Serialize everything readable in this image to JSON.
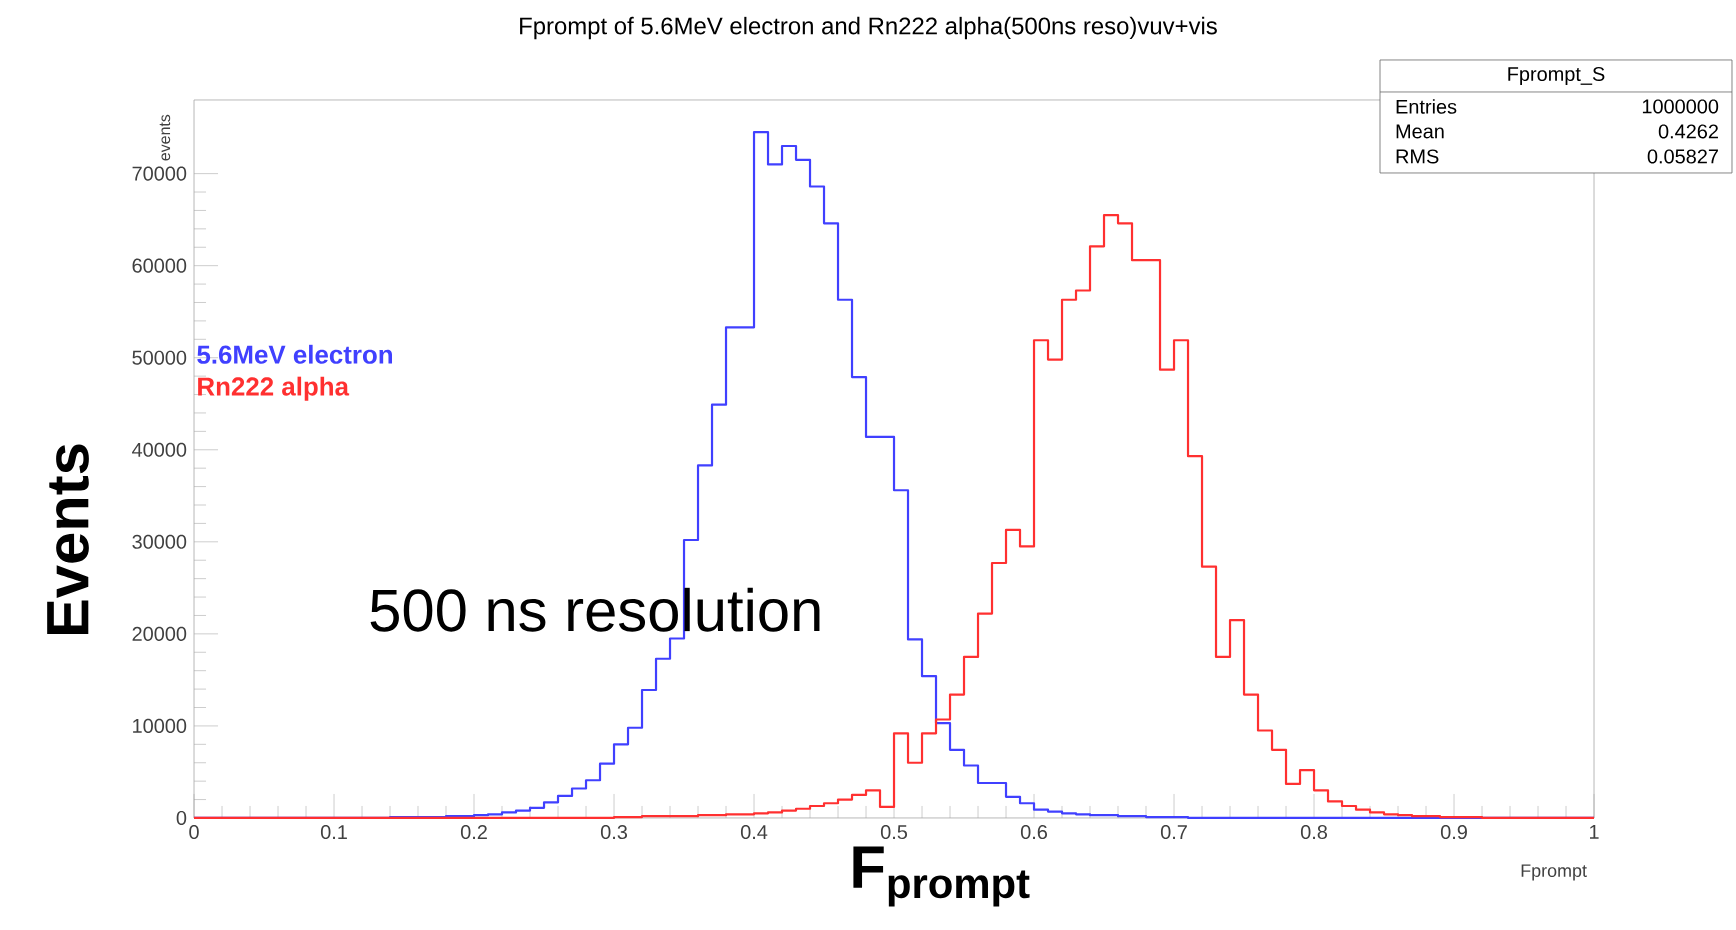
{
  "chart_data": {
    "type": "histogram",
    "title": "Fprompt of 5.6MeV electron and Rn222 alpha(500ns reso)vuv+vis",
    "xlabel": "F$_{prompt}$",
    "ylabel": "Events",
    "annotations": [
      "events",
      "Fprompt",
      "500 ns resolution",
      "Fprompt_S",
      "Entries",
      "1000000",
      "Mean",
      "0.4262",
      "RMS",
      "0.05827"
    ],
    "legend": "left",
    "xlim": [
      0,
      1
    ],
    "ylim": [
      0,
      78000
    ],
    "xticks": [
      0,
      0.1,
      0.2,
      0.3,
      0.4,
      0.5,
      0.6,
      0.7,
      0.8,
      0.9,
      1
    ],
    "yticks": [
      0,
      10000,
      20000,
      30000,
      40000,
      50000,
      60000,
      70000
    ],
    "bins": [
      0,
      0.01,
      0.02,
      0.03,
      0.04,
      0.05,
      0.06,
      0.07,
      0.08,
      0.09,
      0.1,
      0.11,
      0.12,
      0.13,
      0.14,
      0.15,
      0.16,
      0.17,
      0.18,
      0.19,
      0.2,
      0.21,
      0.22,
      0.23,
      0.24,
      0.25,
      0.26,
      0.27,
      0.28,
      0.29,
      0.3,
      0.31,
      0.32,
      0.33,
      0.34,
      0.35,
      0.36,
      0.37,
      0.38,
      0.39,
      0.4,
      0.41,
      0.42,
      0.43,
      0.44,
      0.45,
      0.46,
      0.47,
      0.48,
      0.49,
      0.5,
      0.51,
      0.52,
      0.53,
      0.54,
      0.55,
      0.56,
      0.57,
      0.58,
      0.59,
      0.6,
      0.61,
      0.62,
      0.63,
      0.64,
      0.65,
      0.66,
      0.67,
      0.68,
      0.69,
      0.7,
      0.71,
      0.72,
      0.73,
      0.74,
      0.75,
      0.76,
      0.77,
      0.78,
      0.79,
      0.8,
      0.81,
      0.82,
      0.83,
      0.84,
      0.85,
      0.86,
      0.87,
      0.88,
      0.89,
      0.9,
      0.91,
      0.92,
      0.93,
      0.94,
      0.95,
      0.96,
      0.97,
      0.98,
      0.99,
      1
    ],
    "series": [
      {
        "name": "5.6MeV electron",
        "color": "#4040ff",
        "values": [
          0,
          0,
          0,
          0,
          0,
          0,
          0,
          0,
          0,
          0,
          0,
          0,
          0,
          0,
          100,
          100,
          100,
          100,
          200,
          200,
          300,
          400,
          600,
          800,
          1100,
          1700,
          2400,
          3200,
          4100,
          5900,
          8000,
          9800,
          13900,
          17300,
          19500,
          30200,
          38300,
          44900,
          53300,
          53300,
          74500,
          71000,
          73000,
          71500,
          68600,
          64600,
          56300,
          47900,
          41400,
          41400,
          35600,
          19400,
          15400,
          10300,
          7400,
          5700,
          3800,
          3800,
          2300,
          1600,
          900,
          700,
          500,
          400,
          300,
          300,
          200,
          200,
          100,
          100,
          100,
          0,
          0,
          0,
          0,
          0,
          0,
          0,
          0,
          0,
          0,
          0,
          0,
          0,
          0,
          0,
          0,
          0,
          0,
          0,
          0,
          0,
          0,
          0,
          0,
          0,
          0,
          0,
          0,
          0
        ]
      },
      {
        "name": "Rn222 alpha",
        "color": "#ff3030",
        "values": [
          0,
          0,
          0,
          0,
          0,
          0,
          0,
          0,
          0,
          0,
          0,
          0,
          0,
          0,
          0,
          0,
          0,
          0,
          0,
          0,
          0,
          0,
          0,
          0,
          0,
          0,
          0,
          0,
          0,
          0,
          100,
          100,
          200,
          200,
          200,
          200,
          300,
          300,
          400,
          400,
          500,
          600,
          800,
          1000,
          1300,
          1600,
          2000,
          2500,
          3000,
          1200,
          9200,
          6000,
          9200,
          10700,
          13400,
          17500,
          22200,
          27700,
          31300,
          29500,
          51900,
          49800,
          56300,
          57300,
          62100,
          65500,
          64600,
          60600,
          60600,
          48700,
          51900,
          39300,
          27300,
          17500,
          21500,
          13400,
          9500,
          7400,
          3700,
          5200,
          3000,
          1800,
          1300,
          900,
          600,
          400,
          300,
          200,
          200,
          100,
          100,
          100,
          0,
          0,
          0,
          0,
          0,
          0,
          0,
          0
        ]
      }
    ]
  }
}
